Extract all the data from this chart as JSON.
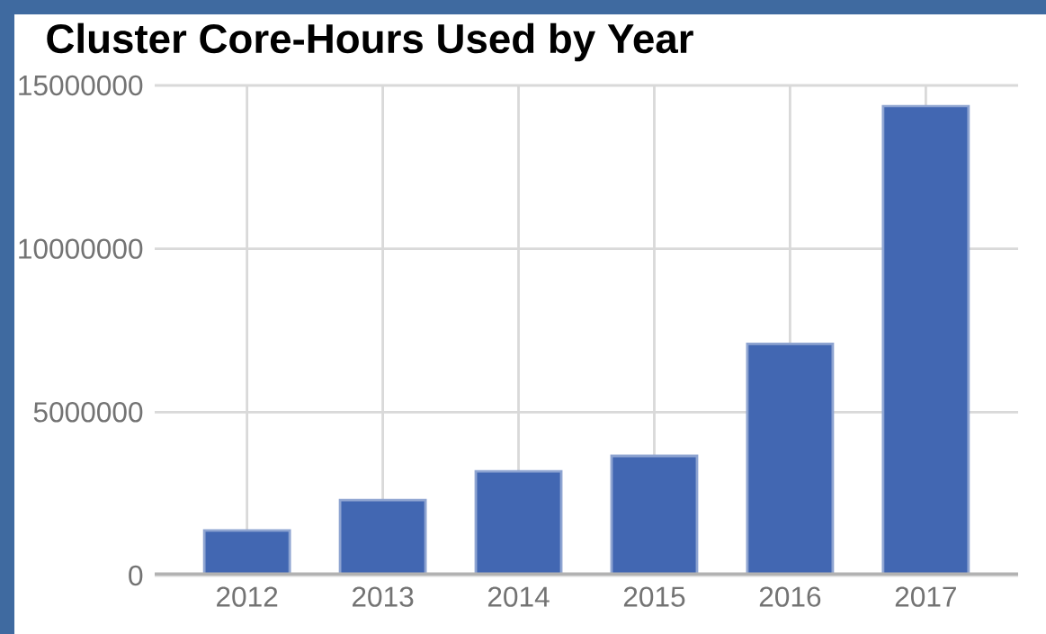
{
  "chart_data": {
    "type": "bar",
    "title": "Cluster Core-Hours Used by Year",
    "categories": [
      "2012",
      "2013",
      "2014",
      "2015",
      "2016",
      "2017"
    ],
    "values": [
      1380000,
      2310000,
      3190000,
      3660000,
      7090000,
      14370000
    ],
    "color": "#4267b2",
    "ylim": [
      0,
      15000000
    ],
    "yticks": [
      0,
      5000000,
      10000000,
      15000000
    ],
    "grid": true
  }
}
